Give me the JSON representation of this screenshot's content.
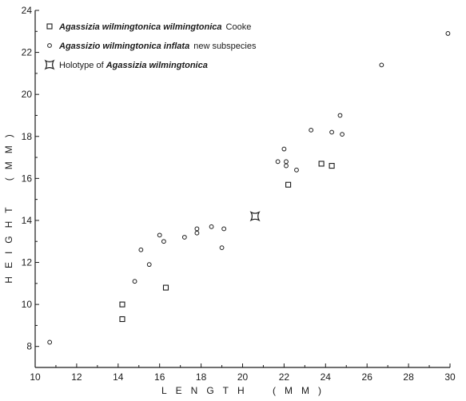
{
  "chart_data": {
    "type": "scatter",
    "xlabel": "LENGTH (MM)",
    "ylabel": "HEIGHT (MM)",
    "xlim": [
      10,
      30
    ],
    "ylim": [
      7,
      24
    ],
    "x_ticks": [
      10,
      12,
      14,
      16,
      18,
      20,
      22,
      24,
      26,
      28,
      30
    ],
    "y_ticks": [
      8,
      10,
      12,
      14,
      16,
      18,
      20,
      22,
      24
    ],
    "grid": false,
    "legend_position": "top-left",
    "legend": [
      {
        "marker": "square",
        "italic_text": "Agassizia wilmingtonica wilmingtonica",
        "plain_text": "Cooke"
      },
      {
        "marker": "circle",
        "italic_text": "Agassizio wilmingtonica inflata",
        "plain_text": "new subspecies"
      },
      {
        "marker": "holotype",
        "italic_text": "Agassizia wilmingtonica",
        "plain_text": "Holotype of"
      }
    ],
    "series": [
      {
        "name": "Agassizia wilmingtonica wilmingtonica Cooke",
        "marker": "square",
        "points": [
          {
            "x": 14.2,
            "y": 10.0
          },
          {
            "x": 14.2,
            "y": 9.3
          },
          {
            "x": 16.3,
            "y": 10.8
          },
          {
            "x": 22.2,
            "y": 15.7
          },
          {
            "x": 23.8,
            "y": 16.7
          },
          {
            "x": 24.3,
            "y": 16.6
          }
        ]
      },
      {
        "name": "Agassizio wilmingtonica inflata new subspecies",
        "marker": "circle",
        "points": [
          {
            "x": 10.7,
            "y": 8.2
          },
          {
            "x": 14.8,
            "y": 11.1
          },
          {
            "x": 15.1,
            "y": 12.6
          },
          {
            "x": 15.5,
            "y": 11.9
          },
          {
            "x": 16.0,
            "y": 13.3
          },
          {
            "x": 16.2,
            "y": 13.0
          },
          {
            "x": 17.2,
            "y": 13.2
          },
          {
            "x": 17.8,
            "y": 13.4
          },
          {
            "x": 17.8,
            "y": 13.6
          },
          {
            "x": 18.5,
            "y": 13.7
          },
          {
            "x": 19.0,
            "y": 12.7
          },
          {
            "x": 19.1,
            "y": 13.6
          },
          {
            "x": 21.7,
            "y": 16.8
          },
          {
            "x": 22.0,
            "y": 17.4
          },
          {
            "x": 22.1,
            "y": 16.8
          },
          {
            "x": 22.1,
            "y": 16.6
          },
          {
            "x": 22.6,
            "y": 16.4
          },
          {
            "x": 23.3,
            "y": 18.3
          },
          {
            "x": 24.3,
            "y": 18.2
          },
          {
            "x": 24.7,
            "y": 19.0
          },
          {
            "x": 24.8,
            "y": 18.1
          },
          {
            "x": 26.7,
            "y": 21.4
          },
          {
            "x": 29.9,
            "y": 22.9
          }
        ]
      },
      {
        "name": "Holotype of Agassizia wilmingtonica",
        "marker": "holotype",
        "points": [
          {
            "x": 20.6,
            "y": 14.2
          }
        ]
      }
    ]
  }
}
